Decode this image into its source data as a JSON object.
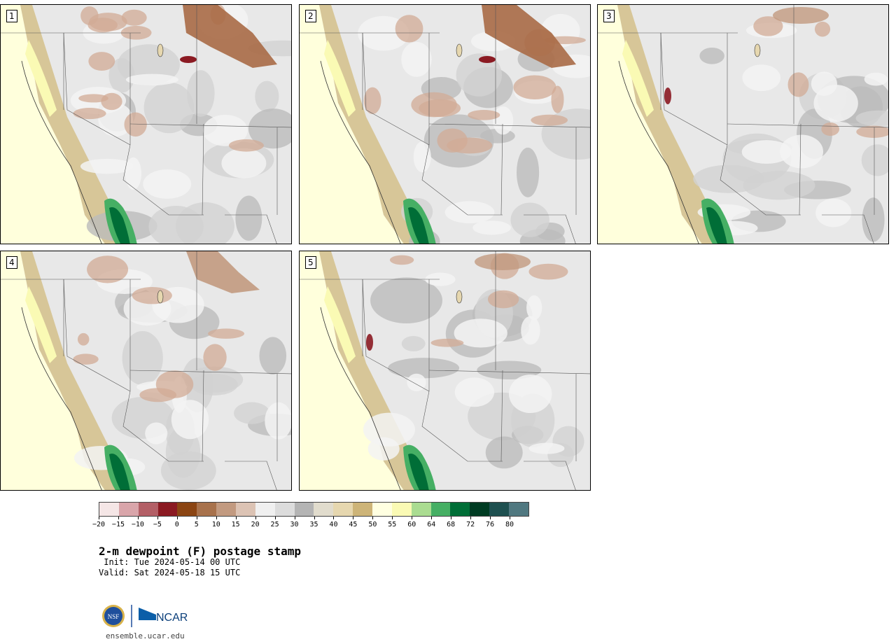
{
  "panels": [
    {
      "label": "1",
      "dry_bias": "strong",
      "green_core": true
    },
    {
      "label": "2",
      "dry_bias": "strong",
      "green_core": true
    },
    {
      "label": "3",
      "dry_bias": "light",
      "green_core": true
    },
    {
      "label": "4",
      "dry_bias": "moderate",
      "green_core": true
    },
    {
      "label": "5",
      "dry_bias": "light",
      "green_core": true
    }
  ],
  "colorbar": {
    "colors": [
      "#f5e6e6",
      "#d9a5aa",
      "#b35f66",
      "#8b1a22",
      "#8b4513",
      "#a8724c",
      "#c29a80",
      "#dcc3b4",
      "#f0f0f0",
      "#dcdcdc",
      "#b4b4b4",
      "#e1dccd",
      "#e6d7af",
      "#cdb478",
      "#ffffe1",
      "#fafab4",
      "#aadc91",
      "#46af64",
      "#006e37",
      "#003c23",
      "#1e5050",
      "#507880"
    ],
    "tick_labels": [
      "−20",
      "−15",
      "−10",
      "−5",
      "0",
      "5",
      "10",
      "15",
      "20",
      "25",
      "30",
      "35",
      "40",
      "45",
      "50",
      "55",
      "60",
      "64",
      "68",
      "72",
      "76",
      "80"
    ]
  },
  "title": "2-m dewpoint (F) postage stamp",
  "init_line": " Init: Tue 2024-05-14 00 UTC",
  "valid_line": "Valid: Sat 2024-05-18 15 UTC",
  "logo": {
    "nsf_text": "NSF",
    "ncar_text": "NCAR"
  },
  "site": "ensemble.ucar.edu"
}
